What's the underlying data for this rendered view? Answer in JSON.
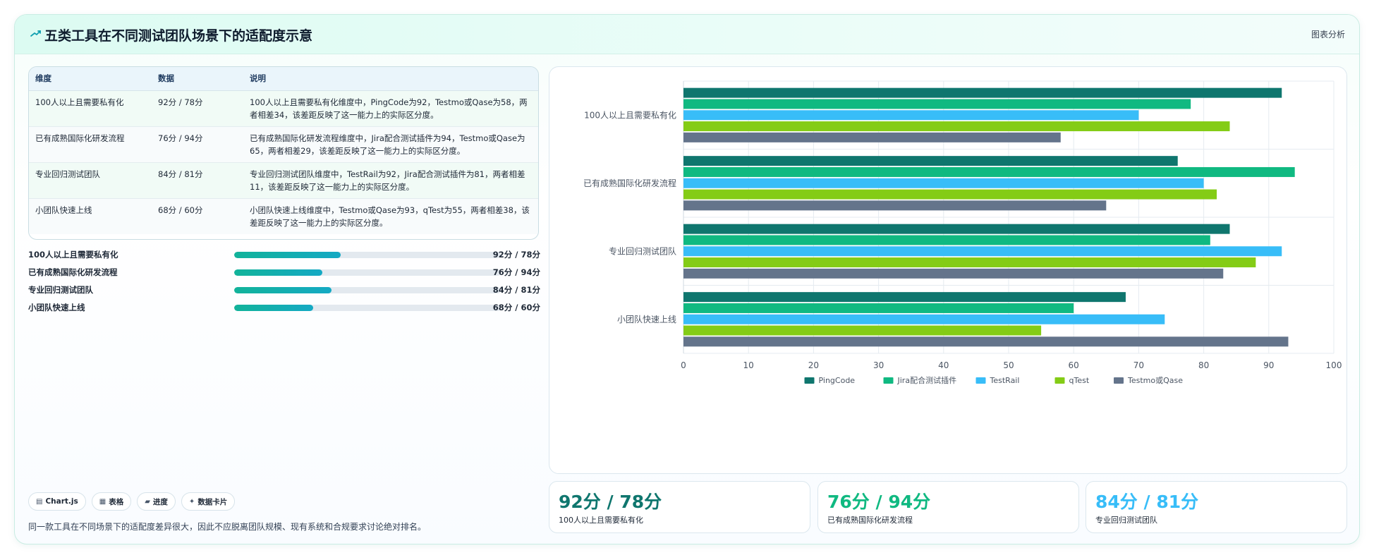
{
  "header": {
    "title": "五类工具在不同测试团队场景下的适配度示意",
    "link": "图表分析"
  },
  "table": {
    "headers": [
      "维度",
      "数据",
      "说明"
    ],
    "rows": [
      {
        "dim": "100人以上且需要私有化",
        "num": "92分 / 78分",
        "desc": "100人以上且需要私有化维度中，PingCode为92，Testmo或Qase为58，两者相差34，该差距反映了这一能力上的实际区分度。"
      },
      {
        "dim": "已有成熟国际化研发流程",
        "num": "76分 / 94分",
        "desc": "已有成熟国际化研发流程维度中，Jira配合测试插件为94，Testmo或Qase为65，两者相差29，该差距反映了这一能力上的实际区分度。"
      },
      {
        "dim": "专业回归测试团队",
        "num": "84分 / 81分",
        "desc": "专业回归测试团队维度中，TestRail为92，Jira配合测试插件为81，两者相差11，该差距反映了这一能力上的实际区分度。"
      },
      {
        "dim": "小团队快速上线",
        "num": "68分 / 60分",
        "desc": "小团队快速上线维度中，Testmo或Qase为93，qTest为55，两者相差38，该差距反映了这一能力上的实际区分度。"
      }
    ]
  },
  "progress": [
    {
      "label": "100人以上且需要私有化",
      "value": "92分 / 78分",
      "fraction": 0.4
    },
    {
      "label": "已有成熟国际化研发流程",
      "value": "76分 / 94分",
      "fraction": 0.33
    },
    {
      "label": "专业回归测试团队",
      "value": "84分 / 81分",
      "fraction": 0.365
    },
    {
      "label": "小团队快速上线",
      "value": "68分 / 60分",
      "fraction": 0.295
    }
  ],
  "chips": [
    {
      "icon": "▤",
      "icon_name": "chart-icon",
      "label": "Chart.js"
    },
    {
      "icon": "▦",
      "icon_name": "table-icon",
      "label": "表格"
    },
    {
      "icon": "▰",
      "icon_name": "progress-icon",
      "label": "进度"
    },
    {
      "icon": "✦",
      "icon_name": "sparkle-icon",
      "label": "数据卡片"
    }
  ],
  "note": "同一款工具在不同场景下的适配度差异很大，因此不应脱离团队规模、现有系统和合规要求讨论绝对排名。",
  "stats": [
    {
      "value": "92分 / 78分",
      "label": "100人以上且需要私有化",
      "color": "#0f766e"
    },
    {
      "value": "76分 / 94分",
      "label": "已有成熟国际化研发流程",
      "color": "#10b981"
    },
    {
      "value": "84分 / 81分",
      "label": "专业回归测试团队",
      "color": "#38bdf8"
    }
  ],
  "chart_data": {
    "type": "bar",
    "orientation": "horizontal",
    "categories": [
      "100人以上且需要私有化",
      "已有成熟国际化研发流程",
      "专业回归测试团队",
      "小团队快速上线"
    ],
    "series": [
      {
        "name": "PingCode",
        "color": "#0f766e",
        "values": [
          92,
          76,
          84,
          68
        ]
      },
      {
        "name": "Jira配合测试插件",
        "color": "#10b981",
        "values": [
          78,
          94,
          81,
          60
        ]
      },
      {
        "name": "TestRail",
        "color": "#38bdf8",
        "values": [
          70,
          80,
          92,
          74
        ]
      },
      {
        "name": "qTest",
        "color": "#84cc16",
        "values": [
          84,
          82,
          88,
          55
        ]
      },
      {
        "name": "Testmo或Qase",
        "color": "#64748b",
        "values": [
          58,
          65,
          83,
          93
        ]
      }
    ],
    "xlim": [
      0,
      100
    ],
    "xticks": [
      0,
      10,
      20,
      30,
      40,
      50,
      60,
      70,
      80,
      90,
      100
    ],
    "grid": true,
    "legend": "bottom"
  }
}
